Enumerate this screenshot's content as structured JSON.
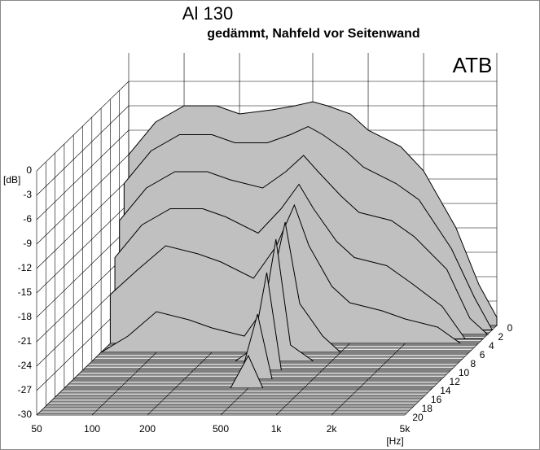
{
  "chart_data": {
    "type": "waterfall",
    "title": "Al 130",
    "subtitle": "gedämmt, Nahfeld vor Seitenwand",
    "logo": "ATB",
    "y_label": "[dB]",
    "x_label": "[Hz]",
    "log_x": true,
    "ylim": [
      -30,
      0
    ],
    "yticks": [
      0,
      -3,
      -6,
      -9,
      -12,
      -15,
      -18,
      -21,
      -24,
      -27,
      -30
    ],
    "xlim": [
      50,
      5000
    ],
    "xticks": [
      50,
      100,
      200,
      500,
      {
        "value": 1000,
        "label": "1k"
      },
      {
        "value": 2000,
        "label": "2k"
      },
      {
        "value": 5000,
        "label": "5k"
      }
    ],
    "zlim": [
      0,
      20
    ],
    "zticks": [
      0,
      2,
      4,
      6,
      8,
      10,
      12,
      14,
      16,
      18,
      20
    ],
    "color": "#c0c0c0",
    "x": [
      50,
      70,
      100,
      150,
      200,
      300,
      400,
      500,
      600,
      800,
      1000,
      1500,
      2000,
      3000,
      4000,
      5000
    ],
    "slices": [
      {
        "t": 0,
        "values": [
          -9,
          -5,
          -3,
          -3,
          -4,
          -3.5,
          -3,
          -2.5,
          -3,
          -4,
          -6,
          -8,
          -11,
          -18,
          -25,
          -29
        ]
      },
      {
        "t": 1,
        "values": [
          -12,
          -8,
          -6,
          -6,
          -7,
          -7,
          -6,
          -5,
          -6,
          -8,
          -10,
          -12,
          -14,
          -20,
          -26,
          -30
        ]
      },
      {
        "t": 2,
        "values": [
          -16,
          -12,
          -10,
          -10,
          -11,
          -12,
          -10,
          -8,
          -10,
          -13,
          -15,
          -16,
          -18,
          -22,
          -28,
          -30
        ]
      },
      {
        "t": 3,
        "values": [
          -20,
          -16,
          -14,
          -14,
          -15,
          -17,
          -14,
          -11,
          -14,
          -18,
          -20,
          -21,
          -23,
          -26,
          -30,
          -30
        ]
      },
      {
        "t": 4,
        "values": [
          -24,
          -21,
          -18,
          -19,
          -20,
          -22,
          -18,
          -13,
          -18,
          -23,
          -25,
          -26,
          -27,
          -28,
          -30,
          -30
        ]
      },
      {
        "t": 6,
        "values": [
          -30,
          -28,
          -25,
          -26,
          -27,
          -28,
          -24,
          -14,
          -24,
          -28,
          -30,
          -30,
          -30,
          -30,
          -30,
          -30
        ]
      },
      {
        "t": 8,
        "values": [
          -30,
          -30,
          -30,
          -30,
          -30,
          -30,
          -28,
          -15,
          -28,
          -30,
          -30,
          -30,
          -30,
          -30,
          -30,
          -30
        ]
      },
      {
        "t": 10,
        "values": [
          -30,
          -30,
          -30,
          -30,
          -30,
          -30,
          -30,
          -18,
          -30,
          -30,
          -30,
          -30,
          -30,
          -30,
          -30,
          -30
        ]
      },
      {
        "t": 12,
        "values": [
          -30,
          -30,
          -30,
          -30,
          -30,
          -30,
          -30,
          -22,
          -30,
          -30,
          -30,
          -30,
          -30,
          -30,
          -30,
          -30
        ]
      },
      {
        "t": 14,
        "values": [
          -30,
          -30,
          -30,
          -30,
          -30,
          -30,
          -30,
          -26,
          -30,
          -30,
          -30,
          -30,
          -30,
          -30,
          -30,
          -30
        ]
      }
    ]
  }
}
